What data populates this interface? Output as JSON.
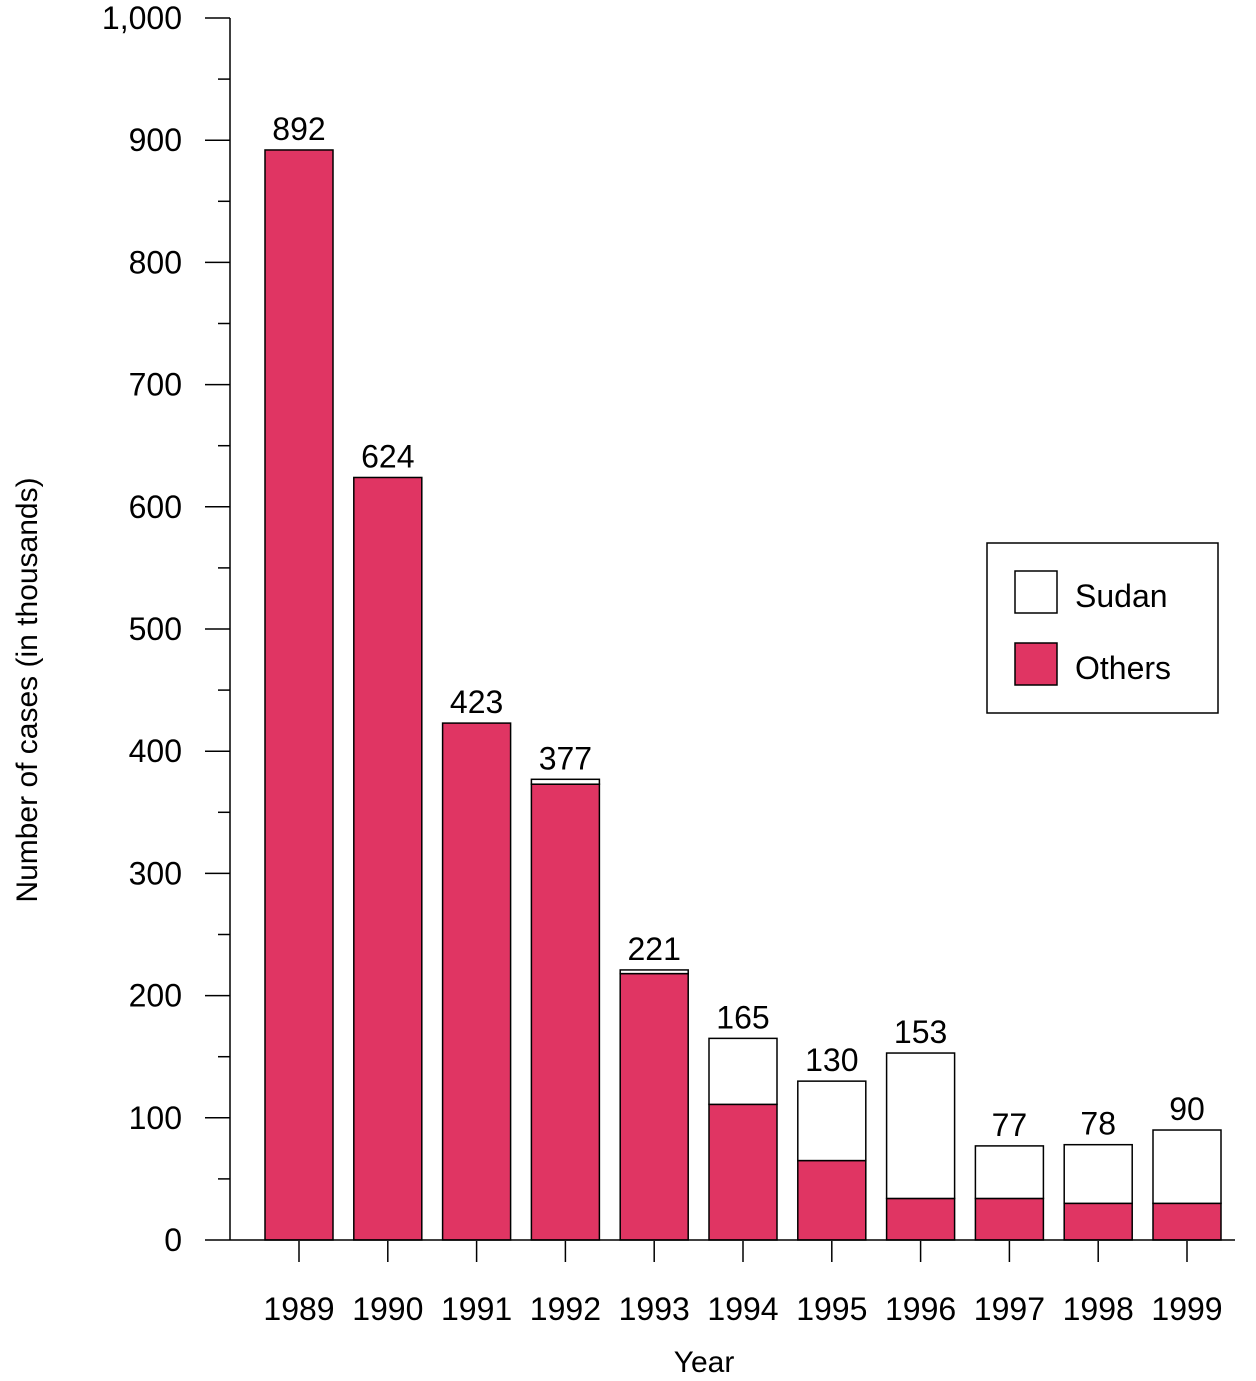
{
  "chart_data": {
    "type": "bar",
    "stacked": true,
    "title": "",
    "xlabel": "Year",
    "ylabel": "Number of cases (in thousands)",
    "ylim": [
      0,
      1000
    ],
    "y_ticks": [
      0,
      100,
      200,
      300,
      400,
      500,
      600,
      700,
      800,
      900,
      1000
    ],
    "y_tick_labels": [
      "0",
      "100",
      "200",
      "300",
      "400",
      "500",
      "600",
      "700",
      "800",
      "900",
      "1,000"
    ],
    "grid": false,
    "legend_position": "right",
    "categories": [
      "1989",
      "1990",
      "1991",
      "1992",
      "1993",
      "1994",
      "1995",
      "1996",
      "1997",
      "1998",
      "1999"
    ],
    "series": [
      {
        "name": "Others",
        "color": "#e03563",
        "values": [
          892,
          624,
          423,
          373,
          218,
          111,
          65,
          34,
          34,
          30,
          30
        ]
      },
      {
        "name": "Sudan",
        "color": "#ffffff",
        "values": [
          0,
          0,
          0,
          4,
          3,
          54,
          65,
          119,
          43,
          48,
          60
        ]
      }
    ],
    "totals": [
      892,
      624,
      423,
      377,
      221,
      165,
      130,
      153,
      77,
      78,
      90
    ],
    "total_labels": [
      "892",
      "624",
      "423",
      "377",
      "221",
      "165",
      "130",
      "153",
      "77",
      "78",
      "90"
    ],
    "legend": [
      {
        "name": "Sudan",
        "color": "#ffffff"
      },
      {
        "name": "Others",
        "color": "#e03563"
      }
    ]
  }
}
